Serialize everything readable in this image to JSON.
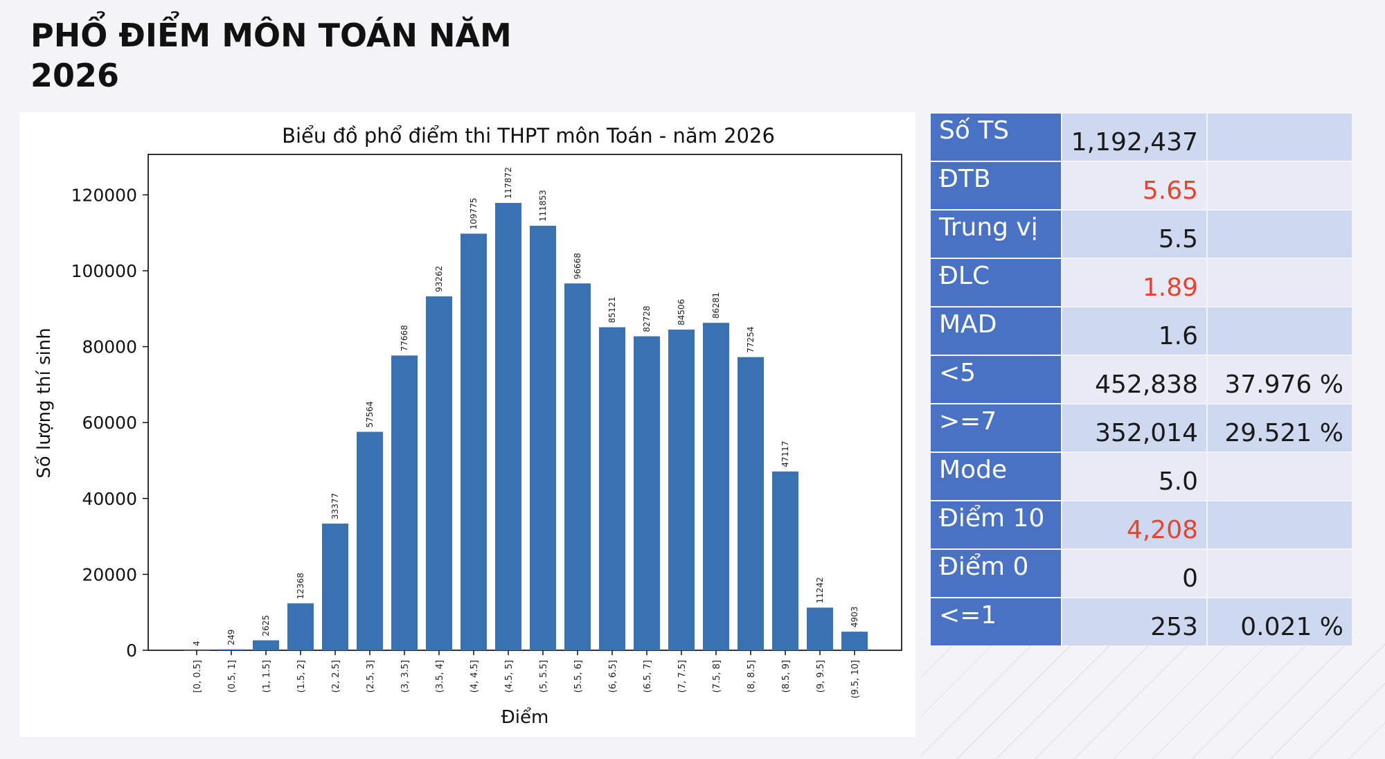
{
  "slide": {
    "title": "PHỔ ĐIỂM MÔN TOÁN NĂM 2026"
  },
  "chart_data": {
    "type": "bar",
    "title": "Biểu đồ phổ điểm thi THPT môn Toán - năm 2026",
    "xlabel": "Điểm",
    "ylabel": "Số lượng thí sinh",
    "ylim": [
      0,
      130000
    ],
    "yticks": [
      0,
      20000,
      40000,
      60000,
      80000,
      100000,
      120000
    ],
    "grid": false,
    "bar_color": "#3a71b3",
    "categories": [
      "[0, 0.5]",
      "(0.5, 1]",
      "(1, 1.5]",
      "(1.5, 2]",
      "(2, 2.5]",
      "(2.5, 3]",
      "(3, 3.5]",
      "(3.5, 4]",
      "(4, 4.5]",
      "(4.5, 5]",
      "(5, 5.5]",
      "(5.5, 6]",
      "(6, 6.5]",
      "(6.5, 7]",
      "(7, 7.5]",
      "(7.5, 8]",
      "(8, 8.5]",
      "(8.5, 9]",
      "(9, 9.5]",
      "(9.5, 10]"
    ],
    "values": [
      4,
      249,
      2625,
      12368,
      33377,
      57564,
      77668,
      93262,
      109775,
      117872,
      111853,
      96668,
      85121,
      82728,
      84506,
      86281,
      77254,
      47117,
      11242,
      4903
    ]
  },
  "stats": {
    "rows": [
      {
        "label": "Số TS",
        "value": "1,192,437",
        "pct": "",
        "highlight": false
      },
      {
        "label": "ĐTB",
        "value": "5.65",
        "pct": "",
        "highlight": true
      },
      {
        "label": "Trung vị",
        "value": "5.5",
        "pct": "",
        "highlight": false
      },
      {
        "label": "ĐLC",
        "value": "1.89",
        "pct": "",
        "highlight": true
      },
      {
        "label": "MAD",
        "value": "1.6",
        "pct": "",
        "highlight": false
      },
      {
        "label": "<5",
        "value": "452,838",
        "pct": "37.976 %",
        "highlight": false
      },
      {
        "label": ">=7",
        "value": "352,014",
        "pct": "29.521 %",
        "highlight": false
      },
      {
        "label": "Mode",
        "value": "5.0",
        "pct": "",
        "highlight": false
      },
      {
        "label": "Điểm 10",
        "value": "4,208",
        "pct": "",
        "highlight": true
      },
      {
        "label": "Điểm 0",
        "value": "0",
        "pct": "",
        "highlight": false
      },
      {
        "label": "<=1",
        "value": "253",
        "pct": "0.021 %",
        "highlight": false
      }
    ],
    "label_color": "#4a72c4",
    "highlight_color": "#e8432e"
  }
}
